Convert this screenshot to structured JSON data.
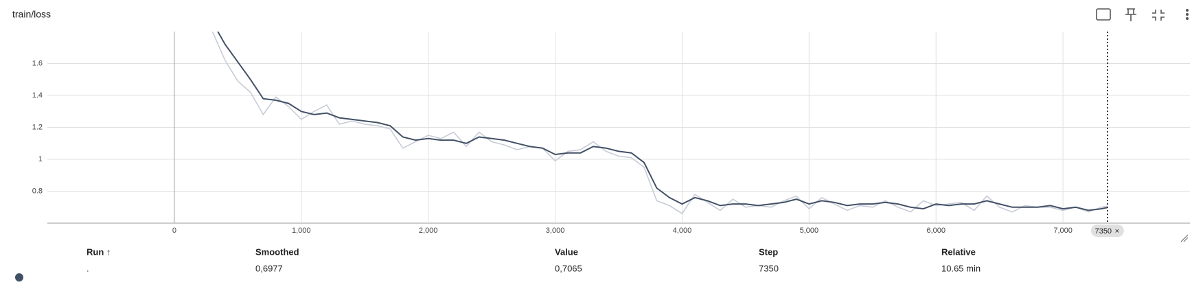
{
  "chart_data": {
    "type": "line",
    "title": "train/loss",
    "x": [
      300,
      400,
      500,
      600,
      700,
      800,
      900,
      1000,
      1100,
      1200,
      1300,
      1400,
      1500,
      1600,
      1700,
      1800,
      1900,
      2000,
      2100,
      2200,
      2300,
      2400,
      2500,
      2600,
      2700,
      2800,
      2900,
      3000,
      3100,
      3200,
      3300,
      3400,
      3500,
      3600,
      3700,
      3800,
      3900,
      4000,
      4100,
      4200,
      4300,
      4400,
      4500,
      4600,
      4700,
      4800,
      4900,
      5000,
      5100,
      5200,
      5300,
      5400,
      5500,
      5600,
      5700,
      5800,
      5900,
      6000,
      6100,
      6200,
      6300,
      6400,
      6500,
      6600,
      6700,
      6800,
      6900,
      7000,
      7100,
      7200,
      7300,
      7350
    ],
    "series": [
      {
        "color": "#c7ccd8",
        "values": [
          1.8,
          1.62,
          1.49,
          1.42,
          1.28,
          1.39,
          1.33,
          1.25,
          1.3,
          1.34,
          1.22,
          1.24,
          1.22,
          1.21,
          1.19,
          1.07,
          1.11,
          1.15,
          1.13,
          1.17,
          1.08,
          1.17,
          1.11,
          1.09,
          1.06,
          1.08,
          1.07,
          0.99,
          1.05,
          1.06,
          1.11,
          1.05,
          1.02,
          1.01,
          0.95,
          0.74,
          0.71,
          0.66,
          0.78,
          0.73,
          0.68,
          0.75,
          0.7,
          0.71,
          0.7,
          0.74,
          0.77,
          0.69,
          0.76,
          0.72,
          0.68,
          0.71,
          0.7,
          0.74,
          0.7,
          0.67,
          0.74,
          0.71,
          0.72,
          0.73,
          0.68,
          0.77,
          0.7,
          0.67,
          0.71,
          0.7,
          0.7,
          0.68,
          0.7,
          0.67,
          0.7,
          0.7065
        ]
      },
      {
        "color": "#425066",
        "values": [
          1.86,
          1.72,
          1.61,
          1.5,
          1.38,
          1.37,
          1.35,
          1.3,
          1.28,
          1.29,
          1.26,
          1.25,
          1.24,
          1.23,
          1.21,
          1.14,
          1.12,
          1.13,
          1.12,
          1.12,
          1.1,
          1.14,
          1.13,
          1.12,
          1.1,
          1.08,
          1.07,
          1.03,
          1.04,
          1.04,
          1.08,
          1.07,
          1.05,
          1.04,
          0.98,
          0.82,
          0.76,
          0.72,
          0.76,
          0.74,
          0.71,
          0.72,
          0.72,
          0.71,
          0.72,
          0.73,
          0.75,
          0.72,
          0.74,
          0.73,
          0.71,
          0.72,
          0.72,
          0.73,
          0.72,
          0.7,
          0.69,
          0.72,
          0.71,
          0.72,
          0.72,
          0.74,
          0.72,
          0.7,
          0.7,
          0.7,
          0.71,
          0.69,
          0.7,
          0.68,
          0.69,
          0.6977
        ]
      }
    ],
    "xlim": [
      -1000,
      8000
    ],
    "xticks": [
      0,
      {
        "value": 1000,
        "label": "1,000"
      },
      {
        "value": 2000,
        "label": "2,000"
      },
      {
        "value": 3000,
        "label": "3,000"
      },
      {
        "value": 4000,
        "label": "4,000"
      },
      {
        "value": 5000,
        "label": "5,000"
      },
      {
        "value": 6000,
        "label": "6,000"
      },
      {
        "value": 7000,
        "label": "7,000"
      }
    ],
    "ylim": [
      0.6,
      1.8
    ],
    "yticks": [
      0.8,
      1,
      1.2,
      1.4,
      1.6
    ],
    "grid": true,
    "cursor": {
      "value": 7350,
      "label": "7350"
    }
  },
  "table": {
    "headers": [
      "Run ↑",
      "Smoothed",
      "Value",
      "Step",
      "Relative"
    ],
    "rows": [
      [
        ".",
        "0,6977",
        "0,7065",
        "7350",
        "10.65 min"
      ]
    ]
  }
}
